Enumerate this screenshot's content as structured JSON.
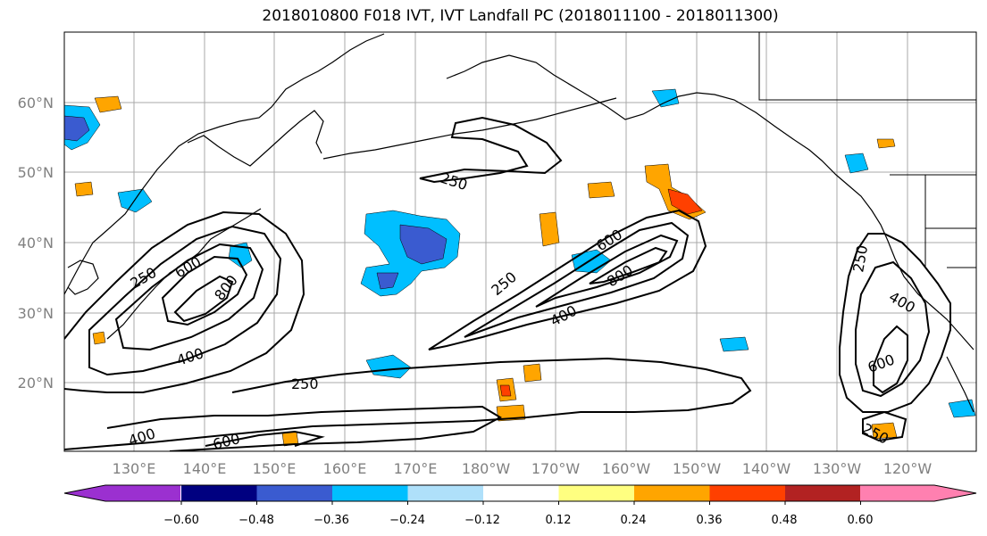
{
  "title": "2018010800 F018 IVT, IVT Landfall PC (2018011100 - 2018011300)",
  "map": {
    "lat_labels": [
      "60°N",
      "50°N",
      "40°N",
      "30°N",
      "20°N"
    ],
    "lon_labels": [
      "130°E",
      "140°E",
      "150°E",
      "160°E",
      "170°E",
      "180°W",
      "170°W",
      "160°W",
      "150°W",
      "140°W",
      "130°W",
      "120°W"
    ],
    "contour_labels": {
      "w250": "250",
      "w400": "400",
      "w600": "600",
      "w800": "800",
      "c250": "250",
      "c600": "600",
      "c800": "800",
      "c400": "400",
      "n250": "250",
      "s250": "250",
      "s400": "400",
      "s600": "600",
      "e250": "250",
      "e400": "400",
      "e600": "600",
      "se250": "250"
    }
  },
  "colorbar": {
    "colors": [
      "#9b30d0",
      "#000080",
      "#3a5bd0",
      "#00bfff",
      "#afe0fa",
      "#ffffff",
      "#ffff80",
      "#ffa500",
      "#ff4000",
      "#b22222",
      "#ff80b0"
    ],
    "ticks": [
      "−0.60",
      "−0.48",
      "−0.36",
      "−0.24",
      "−0.12",
      "0.12",
      "0.24",
      "0.36",
      "0.48",
      "0.60"
    ]
  }
}
